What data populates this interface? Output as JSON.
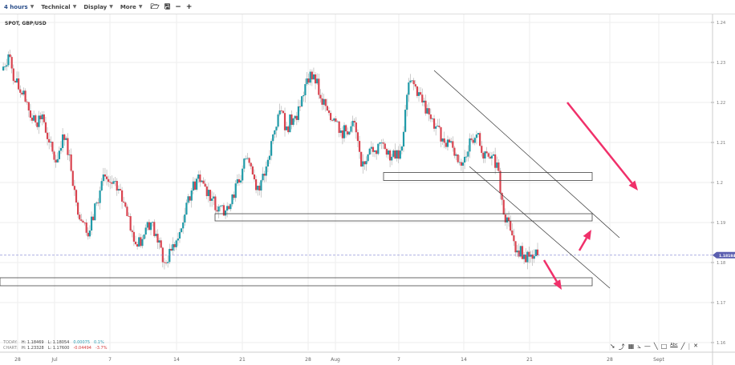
{
  "toolbar": {
    "interval": "4 hours",
    "technical": "Technical",
    "display": "Display",
    "more": "More",
    "icons": [
      "folder-open-icon",
      "save-icon",
      "zoom-out-icon",
      "zoom-in-icon"
    ]
  },
  "chart_title": "SPOT, GBP/USD",
  "stats": {
    "today_label": "TODAY:",
    "today_high": "H: 1.18469",
    "today_low": "L: 1.18054",
    "today_change": "0.00075",
    "today_pct": "0.1%",
    "chart_label": "CHART:",
    "chart_high": "H: 1.23328",
    "chart_low": "L: 1.17600",
    "chart_change": "-0.04494",
    "chart_pct": "-3.7%"
  },
  "colors": {
    "up": "#1f9aa8",
    "down": "#d9434f",
    "price_line": "#7b7fd0",
    "price_label": "#5b5fb0",
    "arrow": "#f0306a"
  },
  "chart_data": {
    "type": "candlestick",
    "symbol": "GBP/USD",
    "interval": "4 hours",
    "ylim": [
      1.16,
      1.24
    ],
    "y_ticks": [
      "1.24",
      "1.23",
      "1.22",
      "1.21",
      "1.2",
      "1.19",
      "1.18",
      "1.17",
      "1.16"
    ],
    "x_ticks": [
      "28",
      "Jul",
      "7",
      "14",
      "21",
      "28",
      "Aug",
      "7",
      "14",
      "21",
      "28",
      "Sept"
    ],
    "last_price": "1.18184",
    "closes": [
      1.228,
      1.232,
      1.225,
      1.222,
      1.218,
      1.215,
      1.217,
      1.21,
      1.205,
      1.212,
      1.207,
      1.195,
      1.19,
      1.188,
      1.195,
      1.202,
      1.2,
      1.198,
      1.195,
      1.188,
      1.184,
      1.187,
      1.19,
      1.185,
      1.18,
      1.183,
      1.186,
      1.192,
      1.198,
      1.202,
      1.199,
      1.196,
      1.194,
      1.193,
      1.197,
      1.2,
      1.206,
      1.202,
      1.198,
      1.204,
      1.212,
      1.218,
      1.214,
      1.216,
      1.219,
      1.226,
      1.227,
      1.221,
      1.218,
      1.216,
      1.213,
      1.212,
      1.215,
      1.204,
      1.207,
      1.208,
      1.21,
      1.208,
      1.206,
      1.209,
      1.225,
      1.224,
      1.22,
      1.217,
      1.214,
      1.211,
      1.21,
      1.207,
      1.205,
      1.211,
      1.212,
      1.206,
      1.206,
      1.205,
      1.192,
      1.188,
      1.183,
      1.182,
      1.182,
      1.1818
    ],
    "drawings": {
      "zones": [
        [
          1.2025,
          1.2005
        ],
        [
          1.1922,
          1.1904
        ],
        [
          1.1762,
          1.1742
        ]
      ],
      "trendlines": 2,
      "arrows": 3
    }
  }
}
